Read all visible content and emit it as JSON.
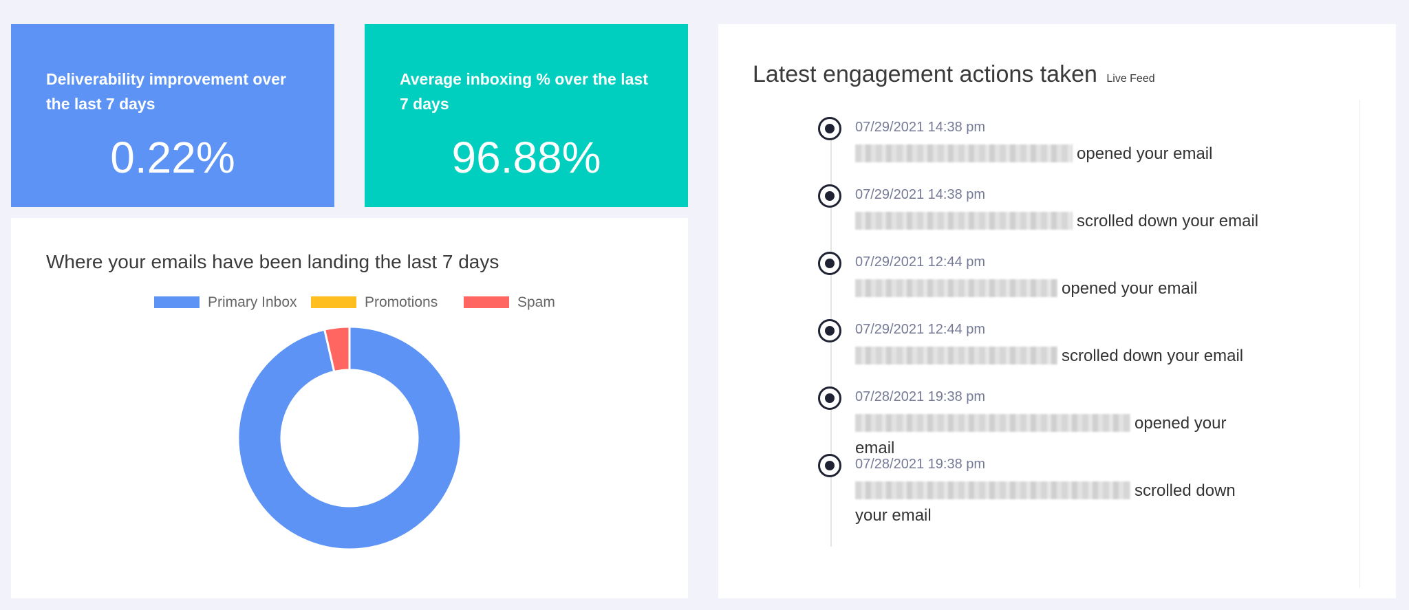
{
  "stats": {
    "deliverability": {
      "label": "Deliverability improvement over the last 7 days",
      "value": "0.22%",
      "color": "#5d93f4"
    },
    "inboxing": {
      "label": "Average inboxing % over the last 7 days",
      "value": "96.88%",
      "color": "#00cebe"
    }
  },
  "landing": {
    "title": "Where your emails have been landing the last 7 days",
    "legend": [
      {
        "label": "Primary Inbox",
        "color": "#5d93f4"
      },
      {
        "label": "Promotions",
        "color": "#ffbe1f"
      },
      {
        "label": "Spam",
        "color": "#ff6561"
      }
    ]
  },
  "chart_data": {
    "type": "pie",
    "categories": [
      "Primary Inbox",
      "Promotions",
      "Spam"
    ],
    "values": [
      96.4,
      0,
      3.6
    ],
    "colors": [
      "#5d93f4",
      "#ffbe1f",
      "#ff6561"
    ],
    "title": "Where your emails have been landing the last 7 days",
    "legend": "top",
    "donut": true
  },
  "feed": {
    "title": "Latest engagement actions taken",
    "subtitle": "Live Feed",
    "entries": [
      {
        "time": "07/29/2021 14:38 pm",
        "action": "opened your email"
      },
      {
        "time": "07/29/2021 14:38 pm",
        "action": "scrolled down your email"
      },
      {
        "time": "07/29/2021 12:44 pm",
        "action": "opened your email"
      },
      {
        "time": "07/29/2021 12:44 pm",
        "action": "scrolled down your email"
      },
      {
        "time": "07/28/2021 19:38 pm",
        "action": "opened your email"
      },
      {
        "time": "07/28/2021 19:38 pm",
        "action": "scrolled down your email"
      }
    ]
  }
}
